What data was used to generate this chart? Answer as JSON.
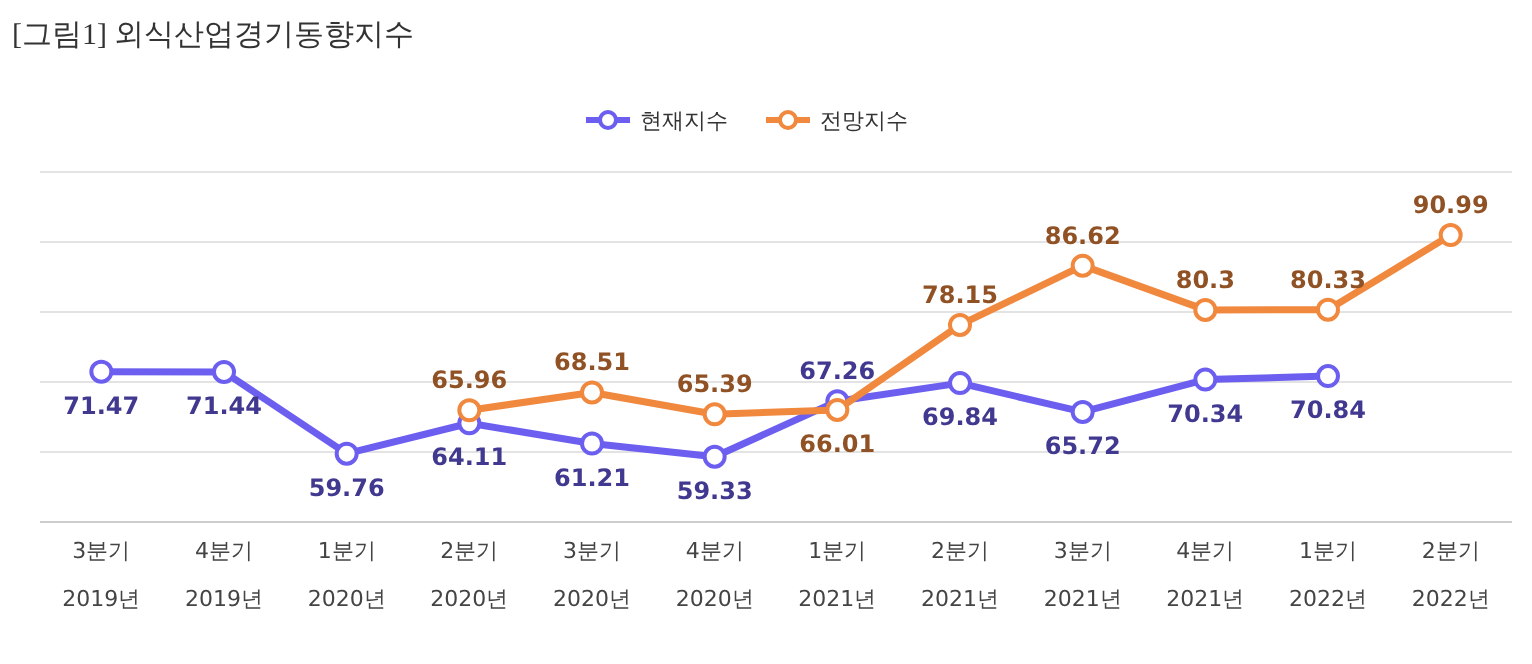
{
  "chart_data": {
    "type": "line",
    "title": "[그림1]  외식산업경기동향지수",
    "categories": [
      "3분기\n2019년",
      "4분기\n2019년",
      "1분기\n2020년",
      "2분기\n2020년",
      "3분기\n2020년",
      "4분기\n2020년",
      "1분기\n2021년",
      "2분기\n2021년",
      "3분기\n2021년",
      "4분기\n2021년",
      "1분기\n2022년",
      "2분기\n2022년"
    ],
    "series": [
      {
        "name": "현재지수",
        "color": "#6c5ff0",
        "values": [
          71.47,
          71.44,
          59.76,
          64.11,
          61.21,
          59.33,
          67.26,
          69.84,
          65.72,
          70.34,
          70.84,
          null
        ]
      },
      {
        "name": "전망지수",
        "color": "#f0883e",
        "values": [
          null,
          null,
          null,
          65.96,
          68.51,
          65.39,
          66.01,
          78.15,
          86.62,
          80.3,
          80.33,
          90.99
        ]
      }
    ],
    "ylim": [
      50,
      100
    ],
    "yticks": [
      {
        "value": 60,
        "label": null
      },
      {
        "value": 70,
        "label": null
      },
      {
        "value": 80,
        "label": null
      },
      {
        "value": 90,
        "label": null
      },
      {
        "value": 100,
        "label": null
      }
    ],
    "tick_labels": "x",
    "grid": "y",
    "legend": "top",
    "marker": "circle",
    "line_style": "solid",
    "data_labels": true
  }
}
